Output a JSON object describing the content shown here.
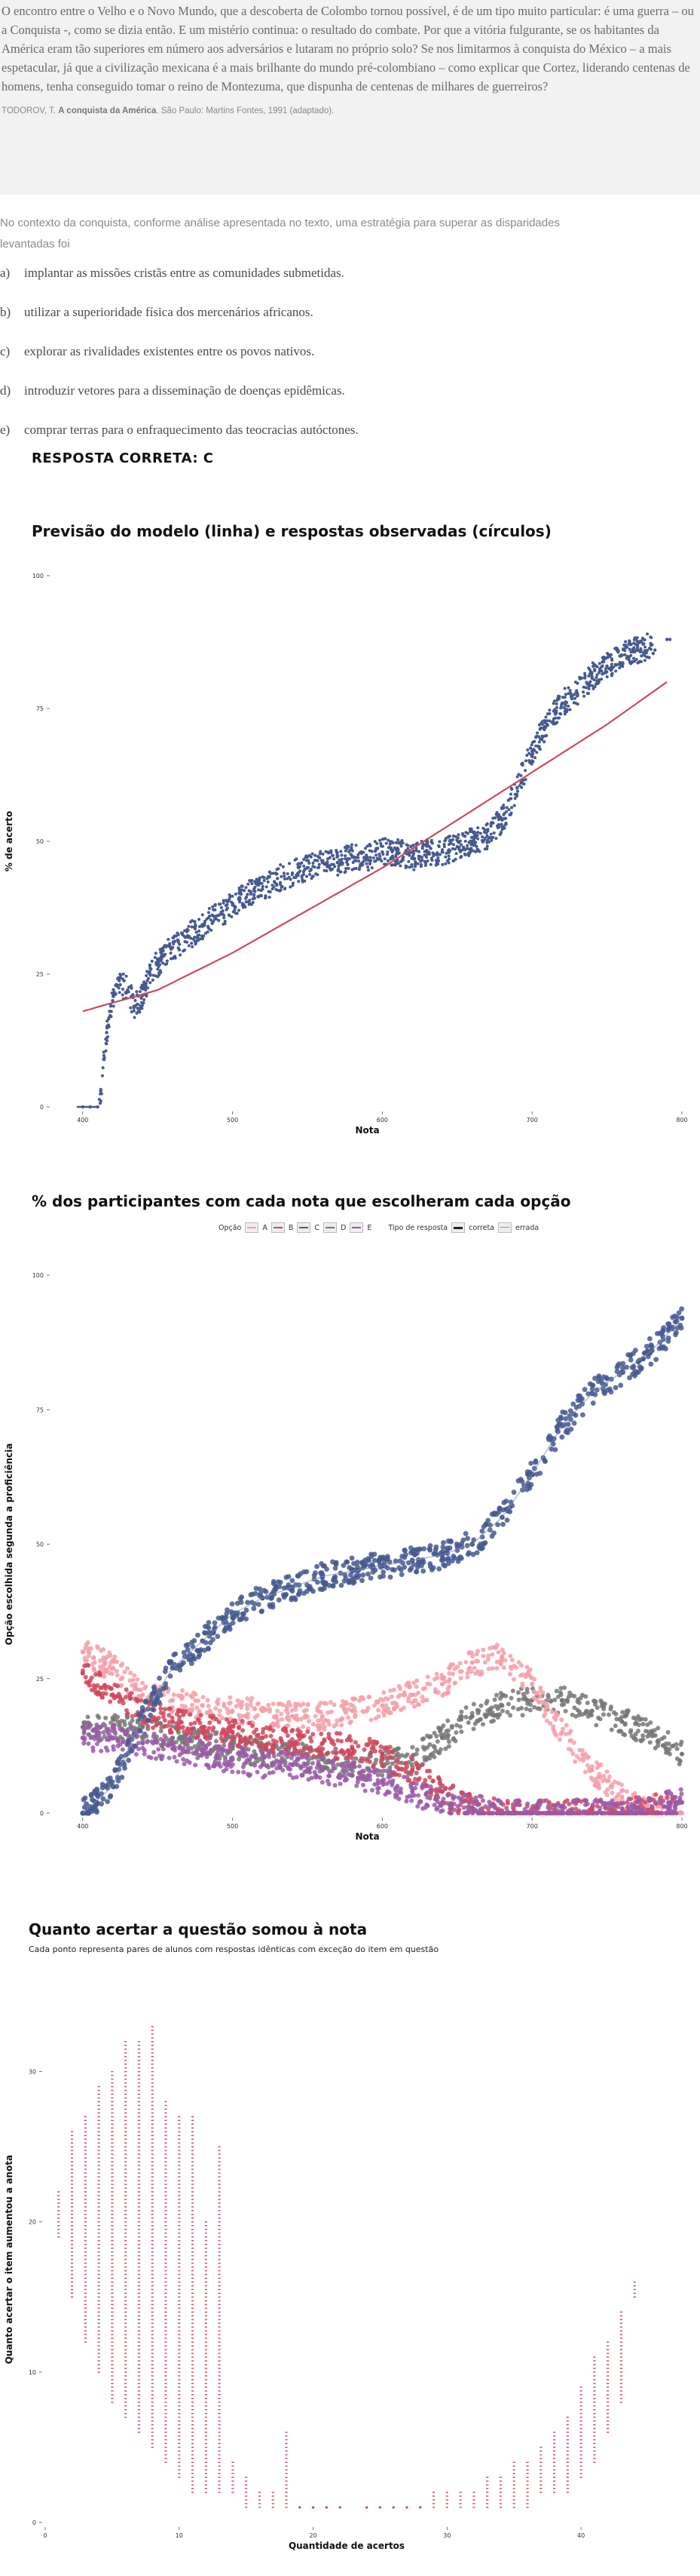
{
  "passage": {
    "text": "O encontro entre o Velho e o Novo Mundo, que a descoberta de Colombo tornou possível, é de um tipo muito particular: é uma guerra – ou a Conquista -, como se dizia então. E um mistério continua: o resultado do combate. Por que a vitória fulgurante, se os habitantes da América eram tão superiores em número aos adversários e lutaram no próprio solo? Se nos limitarmos à conquista do México – a mais espetacular, já que a civilização mexicana é a mais brilhante do mundo pré-colombiano – como explicar que Cortez, liderando centenas de homens, tenha conseguido tomar o reino de Montezuma, que dispunha de centenas de milhares de guerreiros?",
    "citation_author": "TODOROV, T.",
    "citation_title": "A conquista da América",
    "citation_rest": ". São Paulo: Martins Fontes, 1991 (adaptado)."
  },
  "question": "No contexto da conquista, conforme análise apresentada no texto, uma estratégia para superar as disparidades levantadas foi",
  "options": [
    {
      "letter": "a)",
      "text": "implantar as missões cristãs entre as comunidades submetidas."
    },
    {
      "letter": "b)",
      "text": "utilizar a superioridade física dos mercenários africanos."
    },
    {
      "letter": "c)",
      "text": "explorar as rivalidades existentes entre os povos nativos."
    },
    {
      "letter": "d)",
      "text": "introduzir vetores para a disseminação de doenças epidêmicas."
    },
    {
      "letter": "e)",
      "text": "comprar terras para o enfraquecimento das teocracias autóctones."
    }
  ],
  "answer": "RESPOSTA CORRETA: C",
  "colors": {
    "A": "#f4a0a8",
    "B": "#d0485c",
    "C": "#46598f",
    "D": "#777777",
    "E": "#9a5aa8",
    "fit_line": "#cc4a5c",
    "chart3_points": "#cc4a5c"
  },
  "chart_data": [
    {
      "type": "scatter",
      "title": "Previsão do modelo (linha) e respostas observadas (círculos)",
      "xlabel": "Nota",
      "ylabel": "% de acerto",
      "xlim": [
        380,
        800
      ],
      "ylim": [
        0,
        100
      ],
      "xticks": [
        "400",
        "500",
        "600",
        "700",
        "800"
      ],
      "yticks": [
        "0",
        "25",
        "50",
        "75",
        "100"
      ],
      "series": [
        {
          "role": "observed",
          "x": [
            400,
            405,
            410,
            412,
            414,
            416,
            418,
            420,
            425,
            430,
            435,
            440,
            445,
            450,
            460,
            470,
            480,
            490,
            500,
            510,
            520,
            530,
            540,
            550,
            560,
            570,
            580,
            590,
            600,
            610,
            620,
            630,
            640,
            650,
            660,
            670,
            680,
            690,
            700,
            710,
            720,
            730,
            740,
            750,
            760,
            770,
            780,
            790
          ],
          "y": [
            0,
            0,
            0,
            3,
            9,
            14,
            18,
            20,
            23,
            22,
            19,
            21,
            25,
            27,
            30,
            32,
            34,
            36,
            38,
            40,
            41,
            43,
            44,
            45,
            46,
            46,
            47,
            47,
            48,
            48,
            47,
            48,
            48,
            49,
            50,
            51,
            54,
            60,
            67,
            72,
            76,
            78,
            81,
            83,
            85,
            86,
            87,
            88
          ]
        },
        {
          "role": "model",
          "x": [
            400,
            450,
            500,
            550,
            600,
            650,
            700,
            750,
            790
          ],
          "y": [
            18,
            22,
            29,
            37,
            45,
            54,
            63,
            72,
            80
          ]
        }
      ]
    },
    {
      "type": "scatter",
      "title": "% dos participantes com cada nota que escolheram cada opção",
      "legend": {
        "option_label": "Opção",
        "options": [
          "A",
          "B",
          "C",
          "D",
          "E"
        ],
        "type_label": "Tipo de resposta",
        "types": [
          "correta",
          "errada"
        ]
      },
      "xlabel": "Nota",
      "ylabel": "Opção escolhida segunda a proficiência",
      "xlim": [
        380,
        800
      ],
      "ylim": [
        0,
        100
      ],
      "xticks": [
        "400",
        "500",
        "600",
        "700",
        "800"
      ],
      "yticks": [
        "0",
        "25",
        "50",
        "75",
        "100"
      ],
      "x": [
        400,
        420,
        440,
        460,
        480,
        500,
        520,
        540,
        560,
        580,
        600,
        620,
        640,
        660,
        680,
        700,
        720,
        740,
        760,
        780,
        800
      ],
      "series": [
        {
          "name": "A",
          "values": [
            30,
            27,
            22,
            21,
            20,
            19,
            19,
            18,
            18,
            19,
            20,
            22,
            24,
            28,
            29,
            24,
            15,
            8,
            3,
            1,
            0
          ]
        },
        {
          "name": "B",
          "values": [
            26,
            22,
            19,
            17,
            16,
            15,
            14,
            13,
            13,
            12,
            11,
            8,
            4,
            1,
            0,
            0,
            0,
            0,
            0,
            1,
            2
          ]
        },
        {
          "name": "C",
          "values": [
            0,
            5,
            18,
            27,
            32,
            37,
            40,
            42,
            44,
            45,
            46,
            47,
            48,
            50,
            55,
            63,
            72,
            78,
            82,
            86,
            92
          ]
        },
        {
          "name": "D",
          "values": [
            16,
            16,
            16,
            14,
            13,
            12,
            11,
            11,
            10,
            9,
            9,
            10,
            14,
            18,
            20,
            21,
            21,
            19,
            17,
            15,
            11
          ]
        },
        {
          "name": "E",
          "values": [
            14,
            14,
            13,
            12,
            11,
            10,
            9,
            9,
            8,
            7,
            6,
            4,
            2,
            1,
            0,
            0,
            0,
            0,
            0,
            1,
            2
          ]
        }
      ]
    },
    {
      "type": "scatter",
      "title": "Quanto acertar a questão somou à nota",
      "subtitle": "Cada ponto representa pares de alunos com respostas idênticas com exceção do item em questão",
      "xlabel": "Quantidade de acertos",
      "ylabel": "Quanto acertar o item aumentou a anota",
      "xlim": [
        0,
        45
      ],
      "ylim": [
        0,
        35
      ],
      "xticks": [
        "0",
        "10",
        "20",
        "30",
        "40"
      ],
      "yticks": [
        "0",
        "10",
        "20",
        "30"
      ],
      "columns": [
        {
          "x": 1,
          "min": 19,
          "max": 22
        },
        {
          "x": 2,
          "min": 15,
          "max": 26
        },
        {
          "x": 3,
          "min": 12,
          "max": 27
        },
        {
          "x": 4,
          "min": 10,
          "max": 29
        },
        {
          "x": 5,
          "min": 8,
          "max": 30
        },
        {
          "x": 6,
          "min": 7,
          "max": 32
        },
        {
          "x": 7,
          "min": 6,
          "max": 32
        },
        {
          "x": 8,
          "min": 5,
          "max": 33
        },
        {
          "x": 9,
          "min": 4,
          "max": 28
        },
        {
          "x": 10,
          "min": 3,
          "max": 27
        },
        {
          "x": 11,
          "min": 2,
          "max": 27
        },
        {
          "x": 12,
          "min": 2,
          "max": 20
        },
        {
          "x": 13,
          "min": 2,
          "max": 25
        },
        {
          "x": 14,
          "min": 2,
          "max": 4
        },
        {
          "x": 15,
          "min": 1,
          "max": 3
        },
        {
          "x": 16,
          "min": 1,
          "max": 2
        },
        {
          "x": 17,
          "min": 1,
          "max": 2
        },
        {
          "x": 18,
          "min": 1,
          "max": 6
        },
        {
          "x": 19,
          "min": 1,
          "max": 1
        },
        {
          "x": 20,
          "min": 1,
          "max": 1
        },
        {
          "x": 21,
          "min": 1,
          "max": 1
        },
        {
          "x": 22,
          "min": 1,
          "max": 1
        },
        {
          "x": 24,
          "min": 1,
          "max": 1
        },
        {
          "x": 25,
          "min": 1,
          "max": 1
        },
        {
          "x": 26,
          "min": 1,
          "max": 1
        },
        {
          "x": 27,
          "min": 1,
          "max": 1
        },
        {
          "x": 28,
          "min": 1,
          "max": 1
        },
        {
          "x": 29,
          "min": 1,
          "max": 2
        },
        {
          "x": 30,
          "min": 1,
          "max": 2
        },
        {
          "x": 31,
          "min": 1,
          "max": 2
        },
        {
          "x": 32,
          "min": 1,
          "max": 2
        },
        {
          "x": 33,
          "min": 1,
          "max": 3
        },
        {
          "x": 34,
          "min": 1,
          "max": 3
        },
        {
          "x": 35,
          "min": 1,
          "max": 4
        },
        {
          "x": 36,
          "min": 1,
          "max": 4
        },
        {
          "x": 37,
          "min": 2,
          "max": 5
        },
        {
          "x": 38,
          "min": 2,
          "max": 6
        },
        {
          "x": 39,
          "min": 2,
          "max": 7
        },
        {
          "x": 40,
          "min": 3,
          "max": 9
        },
        {
          "x": 41,
          "min": 4,
          "max": 11
        },
        {
          "x": 42,
          "min": 6,
          "max": 12
        },
        {
          "x": 43,
          "min": 8,
          "max": 14
        },
        {
          "x": 44,
          "min": 15,
          "max": 16
        }
      ]
    }
  ]
}
